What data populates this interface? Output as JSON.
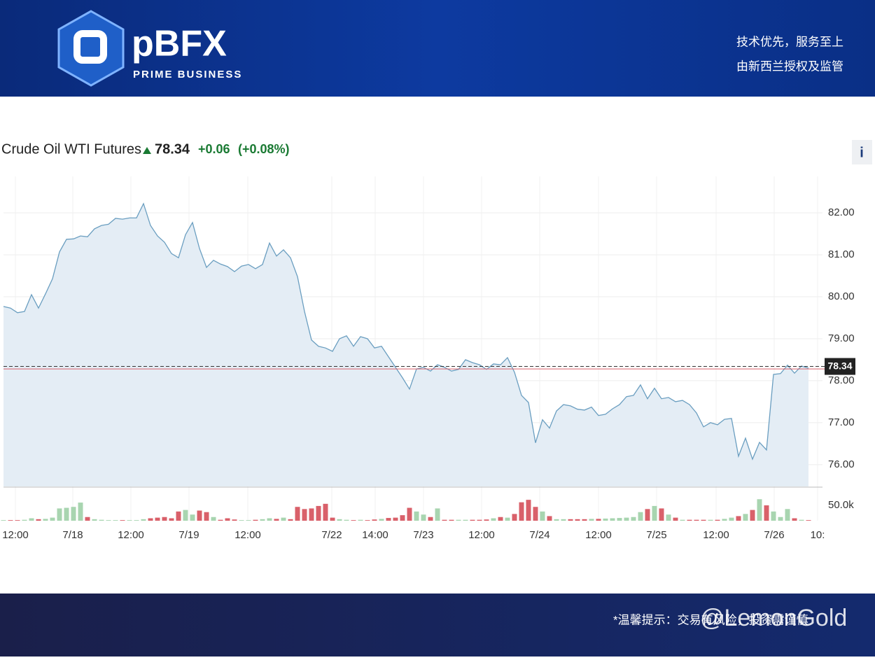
{
  "header": {
    "brand": "pBFX",
    "tagline": "PRIME BUSINESS",
    "slogans": [
      "技术优先，服务至上",
      "由新西兰授权及监管"
    ]
  },
  "footer": {
    "notice": "*温馨提示：交易有风险，投资需谨慎",
    "watermark": "@LemonGold"
  },
  "info_button": "i",
  "chart_data": {
    "type": "line",
    "title": "Crude Oil WTI Futures",
    "last_price": 78.34,
    "change": {
      "value": 0.06,
      "label": "+0.06"
    },
    "change_pct": {
      "value": 0.08,
      "label": "(+0.08%)"
    },
    "prev_close": 78.28,
    "color": "#6a9ec0",
    "fill": "#e4edf5",
    "grid": true,
    "ylim": [
      75.48,
      82.87
    ],
    "yticks": [
      {
        "value": 76,
        "label": "76.00"
      },
      {
        "value": 77,
        "label": "77.00"
      },
      {
        "value": 78,
        "label": "78.00"
      },
      {
        "value": 79,
        "label": "79.00"
      },
      {
        "value": 80,
        "label": "80.00"
      },
      {
        "value": 81,
        "label": "81.00"
      },
      {
        "value": 82,
        "label": "82.00"
      }
    ],
    "xlim": [
      0,
      117
    ],
    "xticks": [
      {
        "value": 1.7,
        "label": "12:00"
      },
      {
        "value": 9.9,
        "label": "7/18"
      },
      {
        "value": 18.2,
        "label": "12:00"
      },
      {
        "value": 26.5,
        "label": "7/19"
      },
      {
        "value": 34.9,
        "label": "12:00"
      },
      {
        "value": 46.9,
        "label": "7/22"
      },
      {
        "value": 53.1,
        "label": "14:00"
      },
      {
        "value": 60,
        "label": "7/23"
      },
      {
        "value": 68.3,
        "label": "12:00"
      },
      {
        "value": 76.6,
        "label": "7/24"
      },
      {
        "value": 85,
        "label": "12:00"
      },
      {
        "value": 93.3,
        "label": "7/25"
      },
      {
        "value": 101.8,
        "label": "12:00"
      },
      {
        "value": 110.1,
        "label": "7/26"
      },
      {
        "value": 116.3,
        "label": "10:"
      }
    ],
    "values": [
      79.77,
      79.73,
      79.62,
      79.65,
      80.05,
      79.73,
      80.07,
      80.43,
      81.07,
      81.37,
      81.38,
      81.45,
      81.43,
      81.62,
      81.7,
      81.73,
      81.87,
      81.85,
      81.88,
      81.88,
      82.22,
      81.7,
      81.45,
      81.3,
      81.03,
      80.93,
      81.48,
      81.77,
      81.15,
      80.7,
      80.87,
      80.78,
      80.72,
      80.6,
      80.73,
      80.77,
      80.67,
      80.77,
      81.28,
      80.97,
      81.12,
      80.93,
      80.48,
      79.65,
      78.97,
      78.82,
      78.78,
      78.7,
      79.0,
      79.07,
      78.82,
      79.05,
      79.0,
      78.78,
      78.82,
      78.57,
      78.32,
      78.07,
      77.8,
      78.28,
      78.32,
      78.23,
      78.38,
      78.32,
      78.23,
      78.27,
      78.5,
      78.43,
      78.38,
      78.27,
      78.4,
      78.38,
      78.55,
      78.2,
      77.65,
      77.48,
      76.52,
      77.07,
      76.87,
      77.28,
      77.43,
      77.4,
      77.32,
      77.3,
      77.37,
      77.17,
      77.2,
      77.33,
      77.43,
      77.62,
      77.65,
      77.9,
      77.57,
      77.82,
      77.57,
      77.6,
      77.5,
      77.53,
      77.43,
      77.23,
      76.9,
      77.0,
      76.95,
      77.08,
      77.1,
      76.2,
      76.63,
      76.13,
      76.53,
      76.35,
      78.15,
      78.17,
      78.37,
      78.18,
      78.35,
      78.3
    ],
    "volume": {
      "up_color": "#a8d5b0",
      "down_color": "#d9606a",
      "ylim": [
        0,
        107000
      ],
      "yticks": [
        {
          "value": 50000,
          "label": "50.0k"
        }
      ],
      "values": [
        2000,
        2000,
        2000,
        3000,
        8000,
        5000,
        6000,
        10000,
        40000,
        42000,
        45000,
        59000,
        12000,
        5000,
        3000,
        2000,
        2000,
        2000,
        2000,
        2000,
        5000,
        8000,
        10000,
        12000,
        8000,
        30000,
        35000,
        20000,
        33000,
        28000,
        12000,
        3000,
        8000,
        4000,
        2000,
        2000,
        3000,
        5000,
        8000,
        6000,
        10000,
        5000,
        45000,
        38000,
        40000,
        48000,
        55000,
        10000,
        5000,
        3000,
        2000,
        3000,
        2000,
        4000,
        6000,
        9000,
        10000,
        18000,
        42000,
        30000,
        20000,
        12000,
        40000,
        3000,
        3000,
        3000,
        3000,
        3000,
        3000,
        4000,
        8000,
        12000,
        10000,
        22000,
        60000,
        68000,
        45000,
        30000,
        15000,
        5000,
        5000,
        5000,
        5000,
        5000,
        6000,
        6000,
        7000,
        8000,
        9000,
        10000,
        12000,
        28000,
        38000,
        48000,
        40000,
        20000,
        10000,
        3000,
        3000,
        3000,
        3000,
        3000,
        3000,
        6000,
        10000,
        15000,
        22000,
        35000,
        70000,
        50000,
        30000,
        12000,
        38000,
        8000,
        3000,
        2000
      ]
    }
  }
}
